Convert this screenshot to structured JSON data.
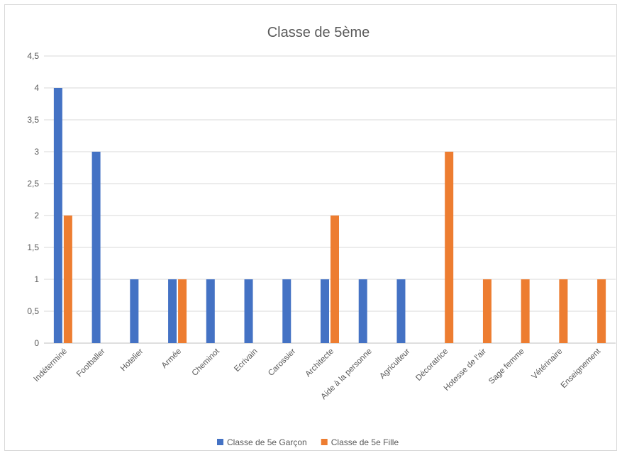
{
  "chart_data": {
    "type": "bar",
    "title": "Classe de 5ème",
    "xlabel": "",
    "ylabel": "",
    "ylim": [
      0,
      4.5
    ],
    "yticks": [
      "0",
      "0,5",
      "1",
      "1,5",
      "2",
      "2,5",
      "3",
      "3,5",
      "4",
      "4,5"
    ],
    "grid": true,
    "legend_position": "bottom",
    "categories": [
      "Indéterminé",
      "Footballer",
      "Hotelier",
      "Armée",
      "Cheminot",
      "Ecrivain",
      "Carossier",
      "Architecte",
      "Aide à la personne",
      "Agriculteur",
      "Décoratrice",
      "Hotesse de l'air",
      "Sage femme",
      "Vétérinaire",
      "Enseignement"
    ],
    "series": [
      {
        "name": "Classe de 5e Garçon",
        "color": "#4472c4",
        "values": [
          4,
          3,
          1,
          1,
          1,
          1,
          1,
          1,
          1,
          1,
          0,
          0,
          0,
          0,
          0
        ]
      },
      {
        "name": "Classe de 5e Fille",
        "color": "#ed7d31",
        "values": [
          2,
          0,
          0,
          1,
          0,
          0,
          0,
          2,
          0,
          0,
          3,
          1,
          1,
          1,
          1
        ]
      }
    ]
  }
}
